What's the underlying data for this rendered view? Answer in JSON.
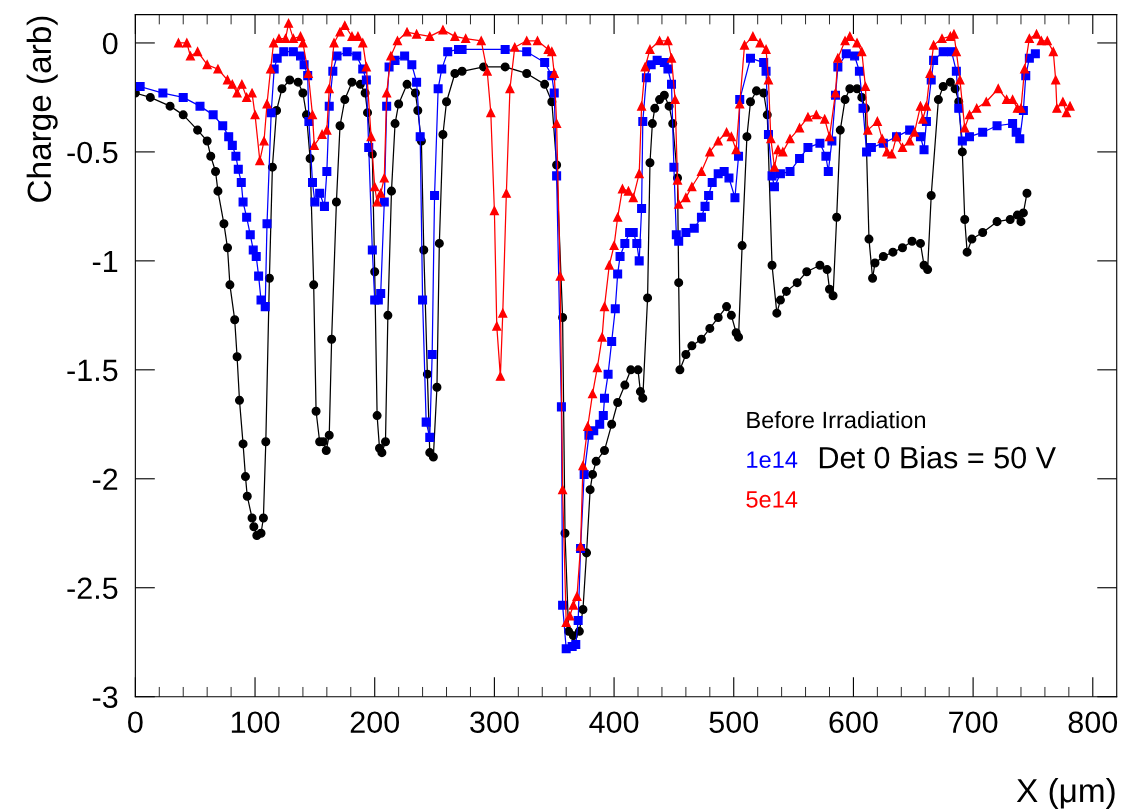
{
  "chart_data": {
    "type": "line",
    "xlabel": "X (μm)",
    "ylabel": "Charge (arb)",
    "xlim": [
      0,
      820
    ],
    "ylim": [
      -3,
      0.13
    ],
    "xticks": [
      0,
      100,
      200,
      300,
      400,
      500,
      600,
      700,
      800
    ],
    "yticks": [
      0,
      {
        "value": -0.5,
        "label": "-0.5"
      },
      {
        "value": -1,
        "label": "-1"
      },
      {
        "value": -1.5,
        "label": "-1.5"
      },
      {
        "value": -2,
        "label": "-2"
      },
      {
        "value": -2.5,
        "label": "-2.5"
      },
      {
        "value": -3,
        "label": "-3"
      }
    ],
    "grid": false,
    "legend": "right",
    "line_style": "solid",
    "annotations": [
      "Det 0 Bias = 50 V"
    ],
    "series": [
      {
        "name": "Before Irradiation",
        "color": "#000000",
        "marker": "circle",
        "x": [
          0,
          12.5,
          29,
          40,
          52,
          60,
          63,
          67,
          69,
          74,
          77,
          79,
          83,
          85,
          87,
          90,
          92,
          93.5,
          97.5,
          99,
          101.5,
          105,
          107,
          109,
          112,
          114.5,
          118,
          122.5,
          129,
          136,
          140,
          143,
          146,
          149,
          151,
          154,
          157,
          159.5,
          162,
          164,
          168,
          171,
          175,
          181,
          188,
          192,
          194,
          198,
          200,
          202,
          204,
          206,
          209,
          211,
          214,
          217,
          220,
          227,
          234,
          236,
          239,
          241,
          244,
          246,
          249,
          252,
          254,
          257,
          260,
          267,
          273,
          291,
          309,
          327,
          342,
          348,
          352,
          357,
          359,
          362,
          366,
          371,
          374,
          377,
          380,
          382,
          385,
          392,
          398,
          403,
          409,
          414,
          420,
          422,
          424,
          428,
          430,
          432,
          434,
          438,
          442,
          446,
          449,
          453,
          454,
          455,
          460,
          465,
          473,
          480,
          487,
          494,
          498,
          502,
          504,
          507,
          511,
          514,
          519,
          525,
          528,
          532,
          536,
          539,
          544,
          553,
          561,
          572,
          578,
          580,
          583,
          586,
          589,
          593,
          597,
          603,
          607,
          610,
          613,
          616,
          618,
          625,
          633,
          641,
          649,
          656,
          659,
          662,
          665,
          671,
          675,
          681,
          685,
          688,
          691,
          693,
          695,
          699,
          708,
          720,
          731,
          737,
          740,
          742,
          745
        ],
        "values": [
          -0.23,
          -0.25,
          -0.29,
          -0.33,
          -0.4,
          -0.45,
          -0.52,
          -0.59,
          -0.68,
          -0.83,
          -0.94,
          -1.11,
          -1.27,
          -1.44,
          -1.64,
          -1.84,
          -1.99,
          -2.08,
          -2.18,
          -2.22,
          -2.26,
          -2.25,
          -2.18,
          -1.83,
          -1.08,
          -0.57,
          -0.31,
          -0.21,
          -0.17,
          -0.18,
          -0.23,
          -0.33,
          -0.53,
          -1.11,
          -1.69,
          -1.83,
          -1.83,
          -1.87,
          -1.8,
          -1.36,
          -0.73,
          -0.38,
          -0.26,
          -0.18,
          -0.19,
          -0.23,
          -0.32,
          -0.51,
          -1.05,
          -1.71,
          -1.86,
          -1.88,
          -1.83,
          -1.25,
          -0.68,
          -0.37,
          -0.28,
          -0.19,
          -0.23,
          -0.31,
          -0.45,
          -0.95,
          -1.52,
          -1.88,
          -1.9,
          -1.58,
          -0.92,
          -0.42,
          -0.27,
          -0.14,
          -0.13,
          -0.11,
          -0.11,
          -0.14,
          -0.19,
          -0.27,
          -0.56,
          -1.26,
          -2.25,
          -2.7,
          -2.72,
          -2.7,
          -2.6,
          -2.34,
          -2.05,
          -1.98,
          -1.92,
          -1.87,
          -1.75,
          -1.65,
          -1.57,
          -1.5,
          -1.5,
          -1.6,
          -1.63,
          -1.17,
          -0.55,
          -0.37,
          -0.3,
          -0.26,
          -0.24,
          -0.29,
          -0.37,
          -0.62,
          -1.1,
          -1.5,
          -1.43,
          -1.39,
          -1.36,
          -1.31,
          -1.26,
          -1.21,
          -1.25,
          -1.33,
          -1.35,
          -0.93,
          -0.43,
          -0.27,
          -0.22,
          -0.23,
          -0.33,
          -1.02,
          -1.24,
          -1.18,
          -1.14,
          -1.1,
          -1.05,
          -1.02,
          -1.04,
          -1.13,
          -1.16,
          -0.8,
          -0.4,
          -0.26,
          -0.21,
          -0.21,
          -0.25,
          -0.3,
          -0.9,
          -1.08,
          -1.01,
          -0.98,
          -0.96,
          -0.94,
          -0.91,
          -0.92,
          -1.02,
          -1.04,
          -0.7,
          -0.26,
          -0.2,
          -0.18,
          -0.21,
          -0.27,
          -0.5,
          -0.81,
          -0.96,
          -0.9,
          -0.87,
          -0.82,
          -0.81,
          -0.79,
          -0.82,
          -0.78,
          -0.69
        ]
      },
      {
        "name": "1e14",
        "color": "#0000ff",
        "marker": "square",
        "x": [
          4,
          23,
          40,
          54,
          65,
          73,
          78,
          81,
          84,
          86,
          88.5,
          90,
          93,
          96,
          98.5,
          101,
          103,
          105,
          108.5,
          110,
          113.5,
          116,
          118.5,
          124,
          132,
          138,
          141,
          144,
          145,
          148,
          150,
          154,
          158,
          160,
          162,
          165,
          168.5,
          177,
          185,
          190,
          193,
          195,
          198,
          200,
          203,
          205,
          208,
          210,
          212,
          217,
          225,
          231,
          235,
          238,
          240,
          243,
          246,
          248,
          250,
          253,
          256,
          261,
          270,
          273,
          309,
          327,
          342,
          348,
          350,
          352,
          356,
          357,
          360,
          365,
          368,
          370,
          372,
          375,
          379,
          383,
          388,
          391,
          392,
          395,
          398,
          401,
          403,
          405,
          409,
          413,
          416,
          419,
          421,
          423,
          424,
          427,
          431,
          436,
          442,
          445,
          448,
          450,
          452,
          454,
          460,
          467,
          473,
          476,
          479,
          482,
          487,
          492,
          496,
          501,
          504,
          505,
          514,
          525,
          527,
          529,
          532,
          534,
          539,
          547,
          555,
          562,
          572,
          577,
          579,
          582,
          585,
          587,
          594,
          601,
          605,
          608,
          611,
          615,
          625,
          636,
          647,
          656,
          659,
          661,
          665,
          667,
          675,
          682,
          686,
          688,
          691,
          697,
          708,
          720,
          733,
          736,
          739,
          742,
          744,
          747,
          752
        ],
        "values": [
          -0.2,
          -0.23,
          -0.25,
          -0.29,
          -0.33,
          -0.38,
          -0.43,
          -0.47,
          -0.52,
          -0.58,
          -0.64,
          -0.73,
          -0.8,
          -0.88,
          -0.95,
          -0.98,
          -1.07,
          -1.18,
          -1.21,
          -0.83,
          -0.32,
          -0.12,
          -0.07,
          -0.04,
          -0.04,
          -0.06,
          -0.1,
          -0.15,
          -0.36,
          -0.64,
          -0.73,
          -0.69,
          -0.75,
          -0.59,
          -0.29,
          -0.13,
          -0.06,
          -0.04,
          -0.06,
          -0.12,
          -0.17,
          -0.48,
          -0.95,
          -1.18,
          -1.18,
          -1.15,
          -0.73,
          -0.29,
          -0.11,
          -0.08,
          -0.06,
          -0.1,
          -0.18,
          -0.43,
          -1.18,
          -1.74,
          -1.81,
          -1.43,
          -0.7,
          -0.21,
          -0.12,
          -0.04,
          -0.03,
          -0.03,
          -0.03,
          -0.04,
          -0.09,
          -0.15,
          -0.23,
          -0.61,
          -1.67,
          -2.58,
          -2.78,
          -2.77,
          -2.76,
          -2.65,
          -2.32,
          -1.98,
          -1.8,
          -1.78,
          -1.75,
          -1.71,
          -1.63,
          -1.52,
          -1.37,
          -1.22,
          -1.06,
          -0.98,
          -0.92,
          -0.87,
          -0.87,
          -0.92,
          -1.0,
          -0.76,
          -0.36,
          -0.16,
          -0.1,
          -0.08,
          -0.09,
          -0.12,
          -0.19,
          -0.57,
          -0.88,
          -0.91,
          -0.87,
          -0.85,
          -0.8,
          -0.75,
          -0.7,
          -0.64,
          -0.6,
          -0.59,
          -0.62,
          -0.71,
          -0.52,
          -0.26,
          -0.07,
          -0.09,
          -0.13,
          -0.42,
          -0.61,
          -0.66,
          -0.6,
          -0.59,
          -0.53,
          -0.48,
          -0.46,
          -0.52,
          -0.59,
          -0.45,
          -0.24,
          -0.11,
          -0.05,
          -0.06,
          -0.13,
          -0.3,
          -0.5,
          -0.48,
          -0.46,
          -0.43,
          -0.4,
          -0.43,
          -0.49,
          -0.36,
          -0.17,
          -0.08,
          -0.04,
          -0.04,
          -0.13,
          -0.3,
          -0.45,
          -0.43,
          -0.41,
          -0.38,
          -0.37,
          -0.41,
          -0.44,
          -0.31,
          -0.15,
          -0.07,
          -0.05
        ]
      },
      {
        "name": "5e14",
        "color": "#ff0000",
        "marker": "triangle",
        "x": [
          36,
          43,
          46,
          52,
          60,
          69,
          77,
          81,
          85,
          89,
          93,
          97.5,
          100,
          104,
          107.5,
          110,
          113,
          115.5,
          120,
          125.5,
          128,
          132,
          138,
          140,
          144.5,
          148,
          149.5,
          156,
          160,
          162,
          166,
          171,
          175,
          181,
          186,
          190,
          193,
          197,
          200,
          202,
          205,
          208,
          210,
          213.5,
          219,
          227,
          235,
          246,
          257,
          267,
          276,
          289,
          294,
          297,
          300,
          302,
          305,
          307,
          310,
          313,
          317,
          327,
          336,
          345,
          348,
          350,
          352,
          355,
          357,
          360,
          363,
          366,
          369,
          372,
          374,
          378,
          382,
          386,
          390,
          392,
          396,
          400,
          403,
          407,
          412,
          416,
          421,
          423,
          426,
          430,
          438,
          445,
          448,
          451,
          453,
          454,
          460,
          465,
          473,
          480,
          487,
          494,
          498,
          502,
          505,
          509,
          516,
          522,
          527,
          529,
          531,
          534,
          537,
          541,
          547,
          555,
          562,
          569,
          576,
          580,
          585,
          587,
          593,
          597,
          603,
          607,
          610,
          612,
          620,
          624,
          628,
          632,
          636,
          641,
          647,
          651,
          656,
          658,
          661,
          664,
          667,
          674,
          681,
          684,
          686,
          689,
          693,
          697,
          703,
          711,
          721,
          728,
          733,
          737,
          740,
          743,
          747,
          753,
          757,
          762,
          767,
          769,
          770,
          775,
          778,
          781
        ],
        "values": [
          0.0,
          0.0,
          -0.06,
          -0.04,
          -0.1,
          -0.12,
          -0.17,
          -0.19,
          -0.23,
          -0.19,
          -0.25,
          -0.23,
          -0.33,
          -0.54,
          -0.45,
          -0.28,
          -0.12,
          0.0,
          0.02,
          0.02,
          0.09,
          0.02,
          0.03,
          0.0,
          -0.14,
          -0.33,
          -0.47,
          -0.42,
          -0.4,
          -0.21,
          0.0,
          0.05,
          0.08,
          0.03,
          0.03,
          0.0,
          -0.11,
          -0.43,
          -0.66,
          -0.73,
          -0.69,
          -0.62,
          -0.23,
          -0.06,
          0.01,
          0.05,
          0.04,
          0.03,
          0.06,
          0.03,
          0.02,
          0.01,
          -0.13,
          -0.32,
          -0.77,
          -1.3,
          -1.53,
          -1.24,
          -0.69,
          -0.21,
          -0.02,
          0.01,
          0.01,
          -0.03,
          -0.04,
          -0.14,
          -0.37,
          -1.07,
          -2.05,
          -2.66,
          -2.63,
          -2.58,
          -2.54,
          -2.31,
          -1.94,
          -1.76,
          -1.61,
          -1.49,
          -1.35,
          -1.21,
          -1.02,
          -0.93,
          -0.8,
          -0.67,
          -0.68,
          -0.71,
          -0.6,
          -0.29,
          -0.11,
          -0.03,
          0.01,
          0.01,
          -0.07,
          -0.26,
          -0.63,
          -0.74,
          -0.71,
          -0.66,
          -0.59,
          -0.5,
          -0.45,
          -0.41,
          -0.43,
          -0.49,
          -0.28,
          -0.01,
          0.03,
          0.0,
          -0.03,
          -0.17,
          -0.44,
          -0.57,
          -0.49,
          -0.5,
          -0.44,
          -0.39,
          -0.34,
          -0.33,
          -0.35,
          -0.43,
          -0.23,
          -0.07,
          0.01,
          0.03,
          0.0,
          -0.04,
          -0.2,
          -0.4,
          -0.36,
          -0.44,
          -0.5,
          -0.51,
          -0.43,
          -0.48,
          -0.45,
          -0.41,
          -0.29,
          -0.35,
          -0.29,
          -0.14,
          -0.01,
          0.02,
          0.03,
          0.04,
          -0.04,
          -0.17,
          -0.39,
          -0.33,
          -0.3,
          -0.27,
          -0.21,
          -0.26,
          -0.26,
          -0.3,
          -0.3,
          -0.12,
          0.02,
          0.04,
          0.01,
          0.01,
          -0.04,
          -0.17,
          -0.3,
          -0.27,
          -0.32,
          -0.29
        ]
      }
    ]
  }
}
